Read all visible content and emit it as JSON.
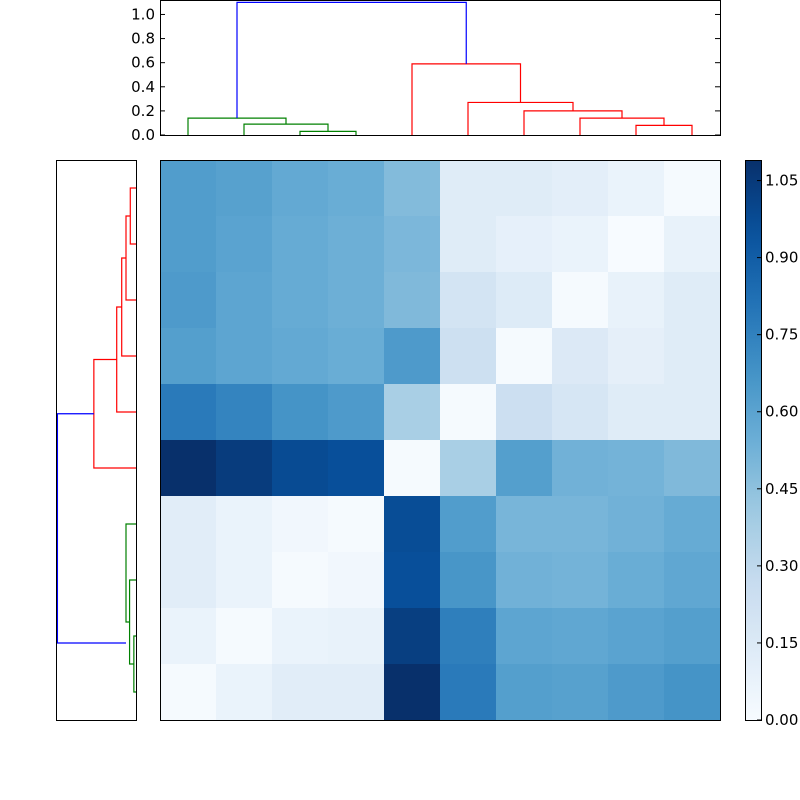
{
  "chart_data": {
    "type": "heatmap",
    "title": "",
    "colormap": "Blues",
    "colorbar": {
      "min": 0.0,
      "max": 1.09,
      "ticks": [
        0.0,
        0.15,
        0.3,
        0.45,
        0.6,
        0.75,
        0.9,
        1.05
      ],
      "tick_labels": [
        "0.00",
        "0.15",
        "0.30",
        "0.45",
        "0.60",
        "0.75",
        "0.90",
        "1.05"
      ]
    },
    "matrix": [
      [
        0.63,
        0.61,
        0.57,
        0.55,
        0.48,
        0.13,
        0.13,
        0.11,
        0.07,
        0.01
      ],
      [
        0.63,
        0.6,
        0.56,
        0.54,
        0.5,
        0.13,
        0.09,
        0.07,
        0.0,
        0.08
      ],
      [
        0.64,
        0.59,
        0.56,
        0.54,
        0.49,
        0.2,
        0.14,
        0.01,
        0.08,
        0.13
      ],
      [
        0.62,
        0.59,
        0.57,
        0.55,
        0.64,
        0.23,
        0.01,
        0.15,
        0.1,
        0.13
      ],
      [
        0.78,
        0.74,
        0.67,
        0.64,
        0.37,
        0.01,
        0.24,
        0.18,
        0.13,
        0.13
      ],
      [
        1.09,
        1.04,
        0.98,
        0.96,
        0.01,
        0.37,
        0.62,
        0.53,
        0.52,
        0.49
      ],
      [
        0.12,
        0.07,
        0.03,
        0.01,
        0.97,
        0.63,
        0.51,
        0.51,
        0.53,
        0.56
      ],
      [
        0.12,
        0.07,
        0.01,
        0.03,
        0.96,
        0.66,
        0.53,
        0.52,
        0.55,
        0.58
      ],
      [
        0.07,
        0.01,
        0.07,
        0.08,
        1.03,
        0.76,
        0.59,
        0.58,
        0.6,
        0.62
      ],
      [
        0.01,
        0.07,
        0.12,
        0.12,
        1.09,
        0.78,
        0.62,
        0.61,
        0.64,
        0.67
      ]
    ],
    "top_dendrogram": {
      "yaxis_ticks": [
        0.0,
        0.2,
        0.4,
        0.6,
        0.8,
        1.0
      ],
      "yaxis_tick_labels": [
        "0.0",
        "0.2",
        "0.4",
        "0.6",
        "0.8",
        "1.0"
      ],
      "ylim": [
        0.0,
        1.12
      ],
      "xlim": [
        0,
        100
      ],
      "links": [
        {
          "color": "#008000",
          "x1": 25,
          "x2": 35,
          "h": 0.03,
          "h1": 0.0,
          "h2": 0.0
        },
        {
          "color": "#008000",
          "x1": 15,
          "x2": 30,
          "h": 0.09,
          "h1": 0.0,
          "h2": 0.03
        },
        {
          "color": "#008000",
          "x1": 5,
          "x2": 22.5,
          "h": 0.14,
          "h1": 0.0,
          "h2": 0.09
        },
        {
          "color": "#ff0000",
          "x1": 85,
          "x2": 95,
          "h": 0.08,
          "h1": 0.0,
          "h2": 0.0
        },
        {
          "color": "#ff0000",
          "x1": 75,
          "x2": 90,
          "h": 0.14,
          "h1": 0.0,
          "h2": 0.08
        },
        {
          "color": "#ff0000",
          "x1": 65,
          "x2": 82.5,
          "h": 0.2,
          "h1": 0.0,
          "h2": 0.14
        },
        {
          "color": "#ff0000",
          "x1": 55,
          "x2": 73.75,
          "h": 0.27,
          "h1": 0.0,
          "h2": 0.2
        },
        {
          "color": "#ff0000",
          "x1": 45,
          "x2": 64.375,
          "h": 0.59,
          "h1": 0.0,
          "h2": 0.27
        },
        {
          "color": "#0000ff",
          "x1": 13.75,
          "x2": 54.6875,
          "h": 1.1,
          "h1": 0.14,
          "h2": 0.59
        }
      ]
    },
    "left_dendrogram": {
      "xlim": [
        1.12,
        0.0
      ],
      "ylim": [
        0,
        100
      ],
      "links": [
        {
          "color": "#008000",
          "y1": 5,
          "y2": 15,
          "h": 0.03,
          "h1": 0.0,
          "h2": 0.0
        },
        {
          "color": "#008000",
          "y1": 10,
          "y2": 25,
          "h": 0.09,
          "h1": 0.03,
          "h2": 0.0
        },
        {
          "color": "#008000",
          "y1": 17.5,
          "y2": 35,
          "h": 0.14,
          "h1": 0.09,
          "h2": 0.0
        },
        {
          "color": "#ff0000",
          "y1": 85,
          "y2": 95,
          "h": 0.08,
          "h1": 0.0,
          "h2": 0.0
        },
        {
          "color": "#ff0000",
          "y1": 75,
          "y2": 90,
          "h": 0.14,
          "h1": 0.0,
          "h2": 0.08
        },
        {
          "color": "#ff0000",
          "y1": 65,
          "y2": 82.5,
          "h": 0.2,
          "h1": 0.0,
          "h2": 0.14
        },
        {
          "color": "#ff0000",
          "y1": 55,
          "y2": 73.75,
          "h": 0.27,
          "h1": 0.0,
          "h2": 0.2
        },
        {
          "color": "#ff0000",
          "y1": 45,
          "y2": 64.375,
          "h": 0.59,
          "h1": 0.0,
          "h2": 0.27
        },
        {
          "color": "#0000ff",
          "y1": 13.75,
          "y2": 54.6875,
          "h": 1.1,
          "h1": 0.14,
          "h2": 0.59
        }
      ]
    },
    "grid": false,
    "legend": "none"
  }
}
